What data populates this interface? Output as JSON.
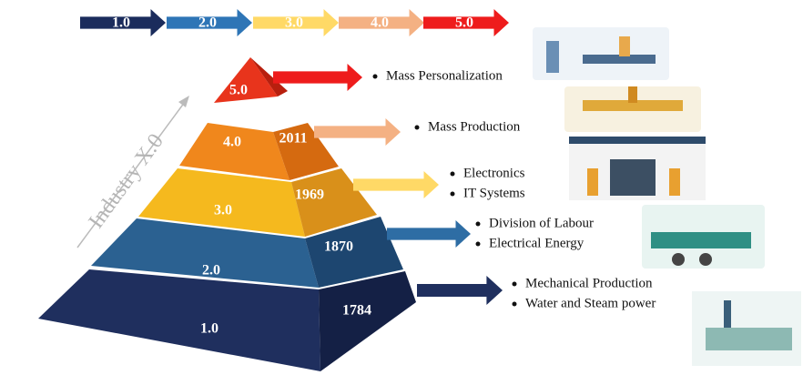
{
  "arrows": [
    "1.0",
    "2.0",
    "3.0",
    "4.0",
    "5.0"
  ],
  "axis_label": "Industry X.0",
  "levels": [
    {
      "label": "1.0",
      "year": "1784",
      "bullets": [
        "Mechanical Production",
        "Water and Steam power"
      ]
    },
    {
      "label": "2.0",
      "year": "1870",
      "bullets": [
        "Division of Labour",
        "Electrical Energy"
      ]
    },
    {
      "label": "3.0",
      "year": "1969",
      "bullets": [
        "Electronics",
        "IT Systems"
      ]
    },
    {
      "label": "4.0",
      "year": "2011",
      "bullets": [
        "Mass Production"
      ]
    },
    {
      "label": "5.0",
      "bullets": [
        "Mass Personalization"
      ]
    }
  ]
}
